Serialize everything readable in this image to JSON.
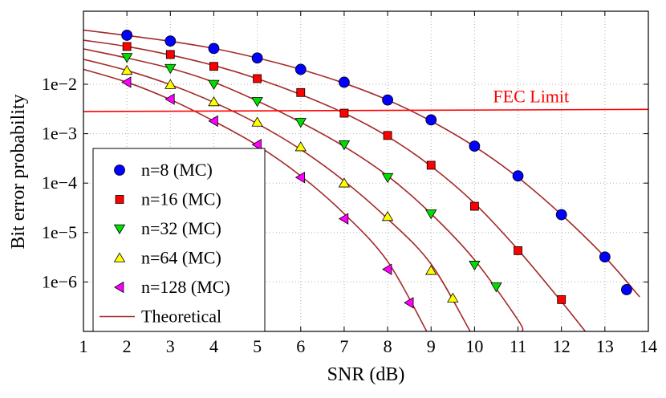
{
  "chart_data": {
    "type": "line",
    "xlabel": "SNR (dB)",
    "ylabel": "Bit error probability",
    "xlim": [
      1,
      14
    ],
    "ylim": [
      1e-07,
      0.3
    ],
    "yscale": "log",
    "grid": true,
    "x_ticks": [
      1,
      2,
      3,
      4,
      5,
      6,
      7,
      8,
      9,
      10,
      11,
      12,
      13,
      14
    ],
    "y_ticks": [
      {
        "value": 0.01,
        "label": "1e−2"
      },
      {
        "value": 0.001,
        "label": "1e−3"
      },
      {
        "value": 0.0001,
        "label": "1e−4"
      },
      {
        "value": 1e-05,
        "label": "1e−5"
      },
      {
        "value": 1e-06,
        "label": "1e−6"
      }
    ],
    "legend_position": "bottom-left",
    "fec_limit": {
      "label": "FEC Limit",
      "x": [
        1,
        14
      ],
      "y": [
        0.0028,
        0.0031
      ],
      "color": "#ff0000"
    },
    "theory_label": "Theoretical",
    "theory_color": "#a52a2a",
    "series": [
      {
        "name": "n=8 (MC)",
        "marker": "circle",
        "color": "#0000ff",
        "x": [
          2,
          3,
          4,
          5,
          6,
          7,
          8,
          9,
          10,
          11,
          12,
          13,
          13.5
        ],
        "values": [
          0.098,
          0.075,
          0.053,
          0.034,
          0.02,
          0.011,
          0.0048,
          0.0019,
          0.00056,
          0.00014,
          2.3e-05,
          3.2e-06,
          7e-07
        ],
        "theory_x": [
          1,
          2,
          3,
          4,
          5,
          6,
          7,
          8,
          9,
          10,
          11,
          12,
          13,
          13.8
        ],
        "theory": [
          0.125,
          0.097,
          0.074,
          0.053,
          0.034,
          0.02,
          0.0105,
          0.0048,
          0.0018,
          0.00055,
          0.00013,
          2.3e-05,
          3.2e-06,
          5e-07
        ]
      },
      {
        "name": "n=16 (MC)",
        "marker": "square",
        "color": "#ff0000",
        "x": [
          2,
          3,
          4,
          5,
          6,
          7,
          8,
          9,
          10,
          11,
          12
        ],
        "values": [
          0.058,
          0.04,
          0.023,
          0.013,
          0.0068,
          0.0026,
          0.00092,
          0.00023,
          3.4e-05,
          4.3e-06,
          4.4e-07
        ],
        "theory_x": [
          1,
          2,
          3,
          4,
          5,
          6,
          7,
          8,
          9,
          10,
          11,
          12,
          12.55
        ],
        "theory": [
          0.078,
          0.058,
          0.039,
          0.024,
          0.013,
          0.0062,
          0.0026,
          0.00088,
          0.00022,
          3.9e-05,
          4.5e-06,
          4e-07,
          1e-07
        ]
      },
      {
        "name": "n=32 (MC)",
        "marker": "triangle-down",
        "color": "#00dd00",
        "x": [
          2,
          3,
          4,
          5,
          6,
          7,
          8,
          9,
          10,
          10.5
        ],
        "values": [
          0.035,
          0.021,
          0.01,
          0.0045,
          0.0017,
          0.0006,
          0.00013,
          2.4e-05,
          2.2e-06,
          8e-07
        ],
        "theory_x": [
          1,
          2,
          3,
          4,
          5,
          6,
          7,
          8,
          9,
          10,
          11,
          11.1
        ],
        "theory": [
          0.052,
          0.034,
          0.021,
          0.011,
          0.0046,
          0.0017,
          0.00055,
          0.00014,
          2.4e-05,
          2.8e-06,
          1.7e-07,
          1e-07
        ]
      },
      {
        "name": "n=64 (MC)",
        "marker": "triangle-up",
        "color": "#ffff00",
        "x": [
          2,
          3,
          4,
          5,
          6,
          7,
          8,
          9,
          9.5
        ],
        "values": [
          0.019,
          0.0098,
          0.0044,
          0.0017,
          0.00054,
          0.0001,
          2.1e-05,
          1.7e-06,
          4.7e-07
        ],
        "theory_x": [
          1,
          2,
          3,
          4,
          5,
          6,
          7,
          8,
          9,
          9.9
        ],
        "theory": [
          0.032,
          0.019,
          0.0098,
          0.0043,
          0.0016,
          0.00048,
          0.00011,
          1.9e-05,
          2.3e-06,
          1e-07
        ]
      },
      {
        "name": "n=128 (MC)",
        "marker": "triangle-left",
        "color": "#ff00ff",
        "x": [
          2,
          3,
          4,
          5,
          6,
          7,
          8,
          8.5
        ],
        "values": [
          0.011,
          0.005,
          0.0018,
          0.0006,
          0.00013,
          1.9e-05,
          1.8e-06,
          3.8e-07
        ],
        "theory_x": [
          1,
          2,
          3,
          4,
          5,
          6,
          7,
          8,
          8.9
        ],
        "theory": [
          0.02,
          0.011,
          0.0049,
          0.0018,
          0.00058,
          0.00014,
          2.4e-05,
          2.6e-06,
          1e-07
        ]
      }
    ]
  }
}
